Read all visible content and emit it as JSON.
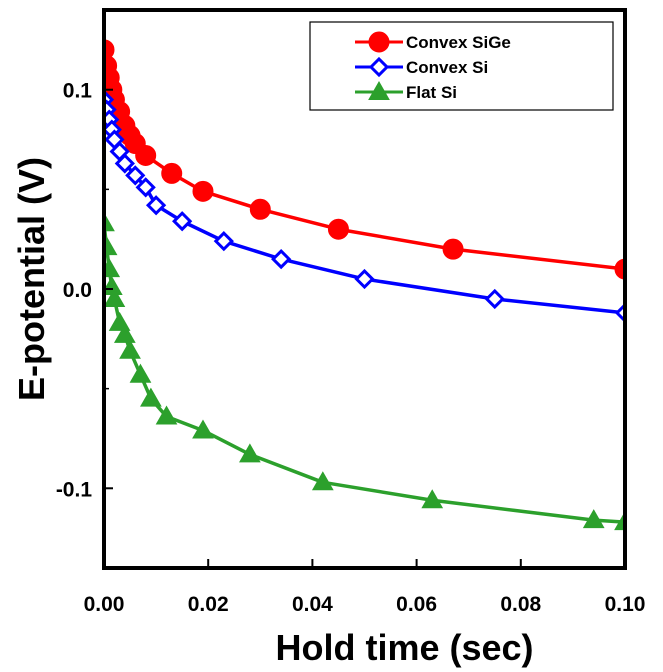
{
  "chart_data": {
    "type": "line",
    "title": "",
    "xlabel": "Hold time (sec)",
    "ylabel": "E-potential (V)",
    "xlim": [
      0.0,
      0.1
    ],
    "ylim": [
      -0.14,
      0.14
    ],
    "xticks": [
      0.0,
      0.02,
      0.04,
      0.06,
      0.08,
      0.1
    ],
    "xtick_labels": [
      "0.00",
      "0.02",
      "0.04",
      "0.06",
      "0.08",
      "0.10"
    ],
    "yticks": [
      0.1,
      0.0,
      -0.1
    ],
    "ytick_labels": [
      "0.1",
      "0.0",
      "-0.1"
    ],
    "grid": false,
    "legend_position": "top-right",
    "series": [
      {
        "name": "Convex SiGe",
        "color": "#ff0000",
        "marker": "filled-circle",
        "x": [
          0.0,
          0.0005,
          0.001,
          0.0015,
          0.002,
          0.003,
          0.004,
          0.005,
          0.006,
          0.008,
          0.013,
          0.019,
          0.03,
          0.045,
          0.067,
          0.1
        ],
        "y": [
          0.12,
          0.112,
          0.106,
          0.1,
          0.095,
          0.089,
          0.082,
          0.077,
          0.073,
          0.067,
          0.058,
          0.049,
          0.04,
          0.03,
          0.02,
          0.01
        ]
      },
      {
        "name": "Convex Si",
        "color": "#0000ff",
        "marker": "open-diamond",
        "x": [
          0.0,
          0.0005,
          0.001,
          0.0015,
          0.002,
          0.003,
          0.004,
          0.006,
          0.008,
          0.01,
          0.015,
          0.023,
          0.034,
          0.05,
          0.075,
          0.1
        ],
        "y": [
          0.095,
          0.09,
          0.085,
          0.08,
          0.075,
          0.069,
          0.063,
          0.057,
          0.051,
          0.042,
          0.034,
          0.024,
          0.015,
          0.005,
          -0.005,
          -0.012
        ]
      },
      {
        "name": "Flat Si",
        "color": "#2ca02c",
        "marker": "filled-triangle",
        "x": [
          0.0,
          0.0005,
          0.001,
          0.0015,
          0.002,
          0.003,
          0.004,
          0.005,
          0.007,
          0.009,
          0.012,
          0.019,
          0.028,
          0.042,
          0.063,
          0.094,
          0.1
        ],
        "y": [
          0.033,
          0.021,
          0.01,
          0.001,
          -0.005,
          -0.017,
          -0.023,
          -0.031,
          -0.043,
          -0.055,
          -0.064,
          -0.071,
          -0.083,
          -0.097,
          -0.106,
          -0.116,
          -0.117
        ]
      }
    ]
  }
}
